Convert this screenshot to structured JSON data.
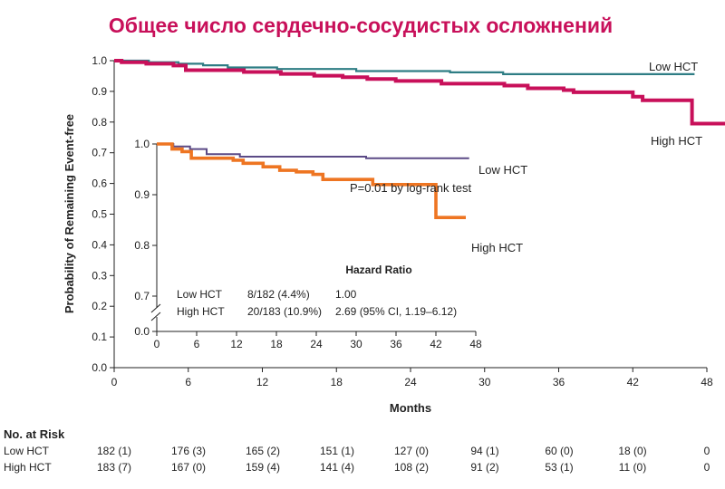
{
  "title": "Общее число сердечно-сосудистых осложнений",
  "colors": {
    "title": "#c8105a",
    "low_main": "#2e7d84",
    "high_main": "#c8105a",
    "low_inset": "#5b4a86",
    "high_inset": "#ee7522",
    "axis": "#222222"
  },
  "chart_data": [
    {
      "type": "line",
      "step": true,
      "xlabel": "Months",
      "ylabel": "Probability of Remaining Event-free",
      "xlim": [
        0,
        48
      ],
      "ylim": [
        0.0,
        1.0
      ],
      "xticks": [
        "0",
        "6",
        "12",
        "18",
        "24",
        "30",
        "36",
        "42",
        "48"
      ],
      "yticks": [
        "0.0",
        "0.1",
        "0.2",
        "0.3",
        "0.4",
        "0.5",
        "0.6",
        "0.7",
        "0.8",
        "0.9",
        "1.0"
      ],
      "series": [
        {
          "name": "Low HCT",
          "points": [
            [
              0,
              1.0
            ],
            [
              2.8,
              1.0
            ],
            [
              2.8,
              0.995
            ],
            [
              5.2,
              0.995
            ],
            [
              5.2,
              0.99
            ],
            [
              7.2,
              0.99
            ],
            [
              7.2,
              0.985
            ],
            [
              9.2,
              0.985
            ],
            [
              9.2,
              0.978
            ],
            [
              13.2,
              0.978
            ],
            [
              13.2,
              0.973
            ],
            [
              19.6,
              0.973
            ],
            [
              19.6,
              0.966
            ],
            [
              27.2,
              0.966
            ],
            [
              27.2,
              0.962
            ],
            [
              31.5,
              0.962
            ],
            [
              31.5,
              0.956
            ],
            [
              47,
              0.956
            ]
          ]
        },
        {
          "name": "High HCT",
          "points": [
            [
              0,
              1.0
            ],
            [
              0.6,
              1.0
            ],
            [
              0.6,
              0.995
            ],
            [
              2.6,
              0.995
            ],
            [
              2.6,
              0.99
            ],
            [
              4.8,
              0.99
            ],
            [
              4.8,
              0.984
            ],
            [
              5.8,
              0.984
            ],
            [
              5.8,
              0.969
            ],
            [
              10.5,
              0.969
            ],
            [
              10.5,
              0.963
            ],
            [
              13.5,
              0.963
            ],
            [
              13.5,
              0.957
            ],
            [
              16.2,
              0.957
            ],
            [
              16.2,
              0.951
            ],
            [
              18.5,
              0.951
            ],
            [
              18.5,
              0.946
            ],
            [
              20.5,
              0.946
            ],
            [
              20.5,
              0.94
            ],
            [
              22.8,
              0.94
            ],
            [
              22.8,
              0.934
            ],
            [
              26.5,
              0.934
            ],
            [
              26.5,
              0.925
            ],
            [
              31.6,
              0.925
            ],
            [
              31.6,
              0.919
            ],
            [
              33.5,
              0.919
            ],
            [
              33.5,
              0.91
            ],
            [
              36.4,
              0.91
            ],
            [
              36.4,
              0.904
            ],
            [
              37.2,
              0.904
            ],
            [
              37.2,
              0.897
            ],
            [
              42,
              0.897
            ],
            [
              42,
              0.883
            ],
            [
              42.8,
              0.883
            ],
            [
              42.8,
              0.871
            ],
            [
              46.8,
              0.871
            ],
            [
              46.8,
              0.795
            ],
            [
              50.5,
              0.795
            ]
          ]
        }
      ],
      "curve_labels": [
        "Low HCT",
        "High HCT"
      ]
    },
    {
      "type": "line",
      "step": true,
      "inset": true,
      "xlim": [
        0,
        48
      ],
      "ylim": [
        0.7,
        1.0
      ],
      "axis_break": true,
      "xticks": [
        "0",
        "6",
        "12",
        "18",
        "24",
        "30",
        "36",
        "42",
        "48"
      ],
      "yticks": [
        "0.0",
        "0.7",
        "0.8",
        "0.9",
        "1.0"
      ],
      "series": [
        {
          "name": "Low HCT",
          "points": [
            [
              0,
              1.0
            ],
            [
              2.5,
              1.0
            ],
            [
              2.5,
              0.995
            ],
            [
              5.0,
              0.995
            ],
            [
              5.0,
              0.99
            ],
            [
              7.5,
              0.99
            ],
            [
              7.5,
              0.98
            ],
            [
              12.5,
              0.98
            ],
            [
              12.5,
              0.975
            ],
            [
              31.5,
              0.975
            ],
            [
              31.5,
              0.972
            ],
            [
              47,
              0.972
            ]
          ]
        },
        {
          "name": "High HCT",
          "points": [
            [
              0,
              1.0
            ],
            [
              2.3,
              1.0
            ],
            [
              2.3,
              0.99
            ],
            [
              3.8,
              0.99
            ],
            [
              3.8,
              0.985
            ],
            [
              5.2,
              0.985
            ],
            [
              5.2,
              0.972
            ],
            [
              11.5,
              0.972
            ],
            [
              11.5,
              0.968
            ],
            [
              13.0,
              0.968
            ],
            [
              13.0,
              0.962
            ],
            [
              16.0,
              0.962
            ],
            [
              16.0,
              0.955
            ],
            [
              18.5,
              0.955
            ],
            [
              18.5,
              0.948
            ],
            [
              21.0,
              0.948
            ],
            [
              21.0,
              0.945
            ],
            [
              23.5,
              0.945
            ],
            [
              23.5,
              0.94
            ],
            [
              25.0,
              0.94
            ],
            [
              25.0,
              0.93
            ],
            [
              32.5,
              0.93
            ],
            [
              32.5,
              0.92
            ],
            [
              42.0,
              0.92
            ],
            [
              42.0,
              0.855
            ],
            [
              46.5,
              0.855
            ]
          ]
        }
      ],
      "curve_labels": [
        "Low HCT",
        "High HCT"
      ],
      "annotation": "P=0.01 by log-rank test",
      "hazard_ratio": {
        "heading": "Hazard Ratio",
        "rows": [
          {
            "group": "Low HCT",
            "events": "8/182 (4.4%)",
            "hr": "1.00"
          },
          {
            "group": "High HCT",
            "events": "20/183 (10.9%)",
            "hr": "2.69 (95% CI, 1.19–6.12)"
          }
        ]
      }
    }
  ],
  "risk_table": {
    "heading": "No. at Risk",
    "rows": [
      {
        "group": "Low HCT",
        "values": [
          "182 (1)",
          "176 (3)",
          "165 (2)",
          "151 (1)",
          "127 (0)",
          "94 (1)",
          "60 (0)",
          "18 (0)",
          "0"
        ]
      },
      {
        "group": "High HCT",
        "values": [
          "183 (7)",
          "167 (0)",
          "159 (4)",
          "141 (4)",
          "108 (2)",
          "91 (2)",
          "53 (1)",
          "11 (0)",
          "0"
        ]
      }
    ]
  }
}
